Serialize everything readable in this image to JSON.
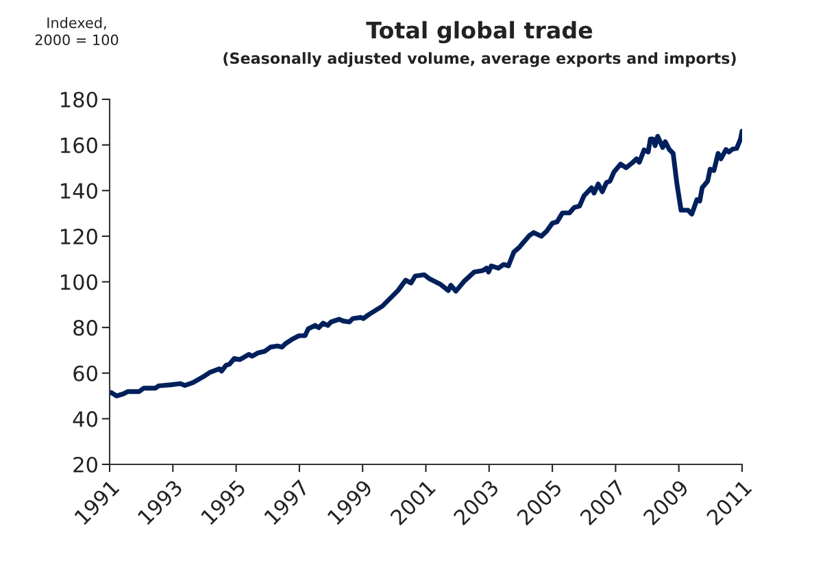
{
  "chart_data": {
    "type": "line",
    "title": "Total global trade",
    "subtitle": "(Seasonally adjusted volume, average exports and imports)",
    "ylabel": "Indexed,\n2000 = 100",
    "xlim": [
      1991,
      2011
    ],
    "xticks": [
      1991,
      1993,
      1995,
      1997,
      1999,
      2001,
      2003,
      2005,
      2007,
      2009,
      2011
    ],
    "ylim": [
      20,
      180
    ],
    "yticks": [
      20,
      40,
      60,
      80,
      100,
      120,
      140,
      160,
      180
    ],
    "grid": false,
    "marker": "none",
    "line_style": "solid",
    "series": [
      {
        "color": "#00205b",
        "x": [
          1991.04,
          1991.22,
          1991.43,
          1991.58,
          1991.93,
          1992.08,
          1992.45,
          1992.55,
          1992.95,
          1993.23,
          1993.38,
          1993.64,
          1993.96,
          1994.18,
          1994.47,
          1994.54,
          1994.68,
          1994.79,
          1994.94,
          1995.12,
          1995.4,
          1995.51,
          1995.7,
          1995.91,
          1996.09,
          1996.31,
          1996.45,
          1996.56,
          1996.78,
          1996.99,
          1997.18,
          1997.28,
          1997.5,
          1997.61,
          1997.75,
          1997.9,
          1998.0,
          1998.26,
          1998.37,
          1998.58,
          1998.69,
          1998.94,
          1999.02,
          1999.2,
          1999.62,
          1999.86,
          2000.12,
          2000.36,
          2000.53,
          2000.66,
          2000.95,
          2001.12,
          2001.45,
          2001.71,
          2001.79,
          2001.95,
          2002.2,
          2002.53,
          2002.79,
          2002.92,
          2002.98,
          2003.07,
          2003.29,
          2003.46,
          2003.61,
          2003.78,
          2003.96,
          2004.03,
          2004.28,
          2004.41,
          2004.65,
          2004.82,
          2005.0,
          2005.15,
          2005.32,
          2005.54,
          2005.69,
          2005.86,
          2006.0,
          2006.24,
          2006.32,
          2006.45,
          2006.58,
          2006.71,
          2006.82,
          2006.95,
          2007.16,
          2007.33,
          2007.53,
          2007.66,
          2007.75,
          2007.9,
          2008.03,
          2008.1,
          2008.18,
          2008.25,
          2008.33,
          2008.49,
          2008.57,
          2008.7,
          2008.82,
          2008.94,
          2009.07,
          2009.29,
          2009.41,
          2009.57,
          2009.66,
          2009.74,
          2009.91,
          2009.99,
          2010.11,
          2010.24,
          2010.33,
          2010.49,
          2010.58,
          2010.7,
          2010.83,
          2010.95,
          2011.0
        ],
        "values": [
          51.5,
          50,
          50.9,
          51.9,
          51.9,
          53.4,
          53.4,
          54.4,
          54.9,
          55.4,
          54.6,
          55.9,
          58.4,
          60.4,
          61.9,
          60.9,
          63.4,
          63.9,
          66.4,
          65.9,
          68.2,
          67.4,
          68.9,
          69.6,
          71.4,
          71.9,
          71.4,
          72.9,
          74.9,
          76.4,
          76.4,
          79.4,
          80.9,
          79.9,
          81.9,
          80.9,
          82.4,
          83.6,
          82.9,
          82.4,
          83.9,
          84.4,
          83.9,
          85.7,
          89.3,
          92.6,
          96.2,
          100.7,
          99.5,
          102.5,
          103.1,
          101.3,
          99,
          96.2,
          98.5,
          95.9,
          100.1,
          104.3,
          104.9,
          106,
          104.3,
          107,
          106,
          107.6,
          107,
          113,
          115.2,
          116.4,
          120.4,
          121.6,
          120,
          122.2,
          125.7,
          126.3,
          130.2,
          130.2,
          132.6,
          133.2,
          137.7,
          141.2,
          138.9,
          142.9,
          139.5,
          143.5,
          144.1,
          148.2,
          151.6,
          150,
          152.2,
          153.9,
          152.4,
          157.8,
          156.9,
          162.6,
          162.6,
          159.7,
          163.8,
          158.9,
          161.4,
          158,
          156.3,
          142.9,
          131.4,
          131.4,
          129.7,
          136,
          135.4,
          141.3,
          144.1,
          149.4,
          148.8,
          156.3,
          153.9,
          158,
          156.9,
          158.2,
          158.5,
          162.6,
          166
        ]
      }
    ]
  }
}
